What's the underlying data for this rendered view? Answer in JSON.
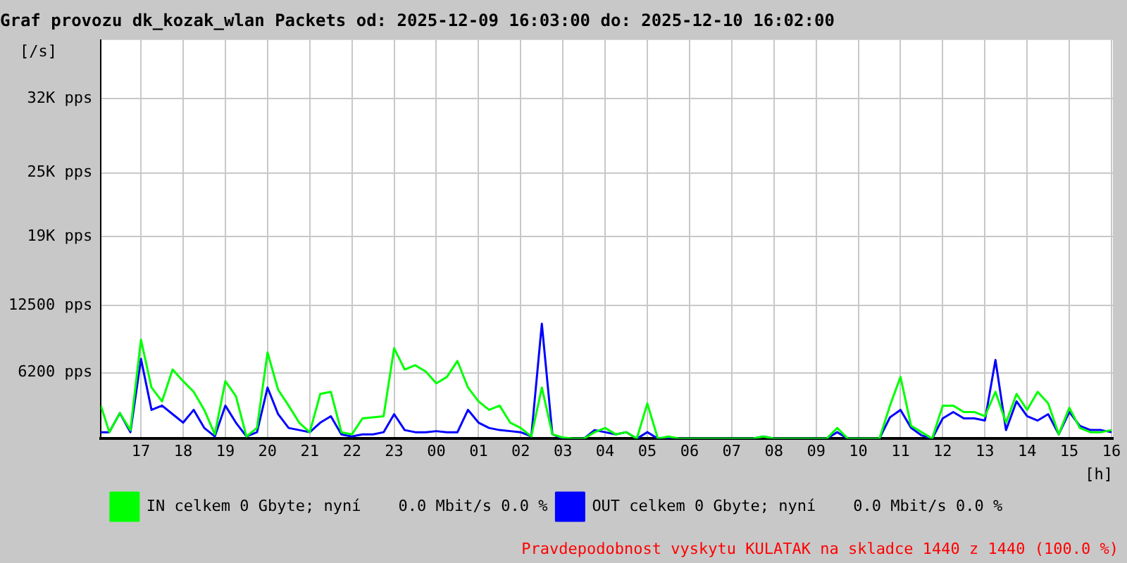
{
  "chart_data": {
    "type": "line",
    "title": "Graf provozu dk_kozak_wlan Packets od: 2025-12-09 16:03:00 do: 2025-12-10 16:02:00",
    "ylabel": "[/s]",
    "xlabel": "[h]",
    "x": [
      "2025-12-09T16:03",
      "2025-12-09T16:15",
      "2025-12-09T16:30",
      "2025-12-09T16:45",
      "2025-12-09T17:00",
      "2025-12-09T17:15",
      "2025-12-09T17:30",
      "2025-12-09T17:45",
      "2025-12-09T18:00",
      "2025-12-09T18:15",
      "2025-12-09T18:30",
      "2025-12-09T18:45",
      "2025-12-09T19:00",
      "2025-12-09T19:15",
      "2025-12-09T19:30",
      "2025-12-09T19:45",
      "2025-12-09T20:00",
      "2025-12-09T20:15",
      "2025-12-09T20:30",
      "2025-12-09T20:45",
      "2025-12-09T21:00",
      "2025-12-09T21:15",
      "2025-12-09T21:30",
      "2025-12-09T21:45",
      "2025-12-09T22:00",
      "2025-12-09T22:15",
      "2025-12-09T22:30",
      "2025-12-09T22:45",
      "2025-12-09T23:00",
      "2025-12-09T23:15",
      "2025-12-09T23:30",
      "2025-12-09T23:45",
      "2025-12-10T00:00",
      "2025-12-10T00:15",
      "2025-12-10T00:30",
      "2025-12-10T00:45",
      "2025-12-10T01:00",
      "2025-12-10T01:15",
      "2025-12-10T01:30",
      "2025-12-10T01:45",
      "2025-12-10T02:00",
      "2025-12-10T02:15",
      "2025-12-10T02:30",
      "2025-12-10T02:45",
      "2025-12-10T03:00",
      "2025-12-10T03:15",
      "2025-12-10T03:30",
      "2025-12-10T03:45",
      "2025-12-10T04:00",
      "2025-12-10T04:15",
      "2025-12-10T04:30",
      "2025-12-10T04:45",
      "2025-12-10T05:00",
      "2025-12-10T05:15",
      "2025-12-10T05:30",
      "2025-12-10T05:45",
      "2025-12-10T06:00",
      "2025-12-10T06:15",
      "2025-12-10T06:30",
      "2025-12-10T06:45",
      "2025-12-10T07:00",
      "2025-12-10T07:15",
      "2025-12-10T07:30",
      "2025-12-10T07:45",
      "2025-12-10T08:00",
      "2025-12-10T08:15",
      "2025-12-10T08:30",
      "2025-12-10T08:45",
      "2025-12-10T09:00",
      "2025-12-10T09:15",
      "2025-12-10T09:30",
      "2025-12-10T09:45",
      "2025-12-10T10:00",
      "2025-12-10T10:15",
      "2025-12-10T10:30",
      "2025-12-10T10:45",
      "2025-12-10T11:00",
      "2025-12-10T11:15",
      "2025-12-10T11:30",
      "2025-12-10T11:45",
      "2025-12-10T12:00",
      "2025-12-10T12:15",
      "2025-12-10T12:30",
      "2025-12-10T12:45",
      "2025-12-10T13:00",
      "2025-12-10T13:15",
      "2025-12-10T13:30",
      "2025-12-10T13:45",
      "2025-12-10T14:00",
      "2025-12-10T14:15",
      "2025-12-10T14:30",
      "2025-12-10T14:45",
      "2025-12-10T15:00",
      "2025-12-10T15:15",
      "2025-12-10T15:30",
      "2025-12-10T15:45",
      "2025-12-10T16:00"
    ],
    "series": [
      {
        "name": "IN celkem 0 Gbyte; nyní    0.0 Mbit/s 0.0 %",
        "color": "#00ff00",
        "values": [
          3100,
          600,
          2400,
          800,
          9300,
          4800,
          3500,
          6500,
          5400,
          4400,
          2700,
          400,
          5400,
          4000,
          200,
          1000,
          8100,
          4600,
          3100,
          1500,
          600,
          4200,
          4400,
          600,
          400,
          1900,
          2000,
          2100,
          8500,
          6500,
          6900,
          6300,
          5200,
          5800,
          7300,
          4800,
          3500,
          2700,
          3100,
          1500,
          1000,
          200,
          4800,
          400,
          100,
          0,
          0,
          600,
          1000,
          400,
          600,
          0,
          3300,
          0,
          200,
          0,
          0,
          0,
          0,
          0,
          0,
          0,
          0,
          200,
          0,
          0,
          0,
          0,
          0,
          0,
          1000,
          0,
          0,
          0,
          0,
          3100,
          5800,
          1200,
          600,
          0,
          3100,
          3100,
          2500,
          2500,
          2100,
          4400,
          1500,
          4200,
          2700,
          4400,
          3300,
          400,
          2900,
          1000,
          600,
          600,
          800
        ]
      },
      {
        "name": "OUT celkem 0 Gbyte; nyní    0.0 Mbit/s 0.0 %",
        "color": "#0000ff",
        "values": [
          600,
          600,
          2400,
          600,
          7500,
          2700,
          3100,
          2300,
          1500,
          2700,
          1000,
          200,
          3100,
          1500,
          200,
          600,
          4800,
          2300,
          1000,
          800,
          600,
          1500,
          2100,
          400,
          200,
          400,
          400,
          600,
          2300,
          800,
          600,
          600,
          700,
          600,
          600,
          2700,
          1500,
          1000,
          800,
          700,
          600,
          200,
          10800,
          400,
          0,
          0,
          0,
          800,
          600,
          400,
          600,
          0,
          600,
          0,
          0,
          0,
          0,
          0,
          0,
          0,
          0,
          0,
          0,
          200,
          0,
          0,
          0,
          0,
          0,
          0,
          600,
          0,
          0,
          0,
          0,
          2000,
          2700,
          1000,
          300,
          0,
          1900,
          2500,
          1900,
          1900,
          1700,
          7400,
          800,
          3500,
          2100,
          1700,
          2300,
          400,
          2500,
          1200,
          800,
          800,
          600
        ]
      }
    ],
    "xlim": [
      "2025-12-09T16:03",
      "2025-12-10T16:02"
    ],
    "xticks": [
      {
        "value": "2025-12-09T17:00",
        "label": "17"
      },
      {
        "value": "2025-12-09T18:00",
        "label": "18"
      },
      {
        "value": "2025-12-09T19:00",
        "label": "19"
      },
      {
        "value": "2025-12-09T20:00",
        "label": "20"
      },
      {
        "value": "2025-12-09T21:00",
        "label": "21"
      },
      {
        "value": "2025-12-09T22:00",
        "label": "22"
      },
      {
        "value": "2025-12-09T23:00",
        "label": "23"
      },
      {
        "value": "2025-12-10T00:00",
        "label": "00"
      },
      {
        "value": "2025-12-10T01:00",
        "label": "01"
      },
      {
        "value": "2025-12-10T02:00",
        "label": "02"
      },
      {
        "value": "2025-12-10T03:00",
        "label": "03"
      },
      {
        "value": "2025-12-10T04:00",
        "label": "04"
      },
      {
        "value": "2025-12-10T05:00",
        "label": "05"
      },
      {
        "value": "2025-12-10T06:00",
        "label": "06"
      },
      {
        "value": "2025-12-10T07:00",
        "label": "07"
      },
      {
        "value": "2025-12-10T08:00",
        "label": "08"
      },
      {
        "value": "2025-12-10T09:00",
        "label": "09"
      },
      {
        "value": "2025-12-10T10:00",
        "label": "10"
      },
      {
        "value": "2025-12-10T11:00",
        "label": "11"
      },
      {
        "value": "2025-12-10T12:00",
        "label": "12"
      },
      {
        "value": "2025-12-10T13:00",
        "label": "13"
      },
      {
        "value": "2025-12-10T14:00",
        "label": "14"
      },
      {
        "value": "2025-12-10T15:00",
        "label": "15"
      },
      {
        "value": "2025-12-10T16:00",
        "label": "16"
      }
    ],
    "ylim": [
      0,
      37500
    ],
    "yticks": [
      {
        "value": 6200,
        "label": "6200 pps"
      },
      {
        "value": 12500,
        "label": "12500 pps"
      },
      {
        "value": 19000,
        "label": "19K pps"
      },
      {
        "value": 25000,
        "label": "25K pps"
      },
      {
        "value": 32000,
        "label": "32K pps"
      }
    ],
    "grid": true,
    "legend": "bottom",
    "marker": "none",
    "line_style": "solid",
    "annotations": [
      "Pravdepodobnost vyskytu KULATAK na skladce 1440 z 1440 (100.0 %)"
    ]
  }
}
